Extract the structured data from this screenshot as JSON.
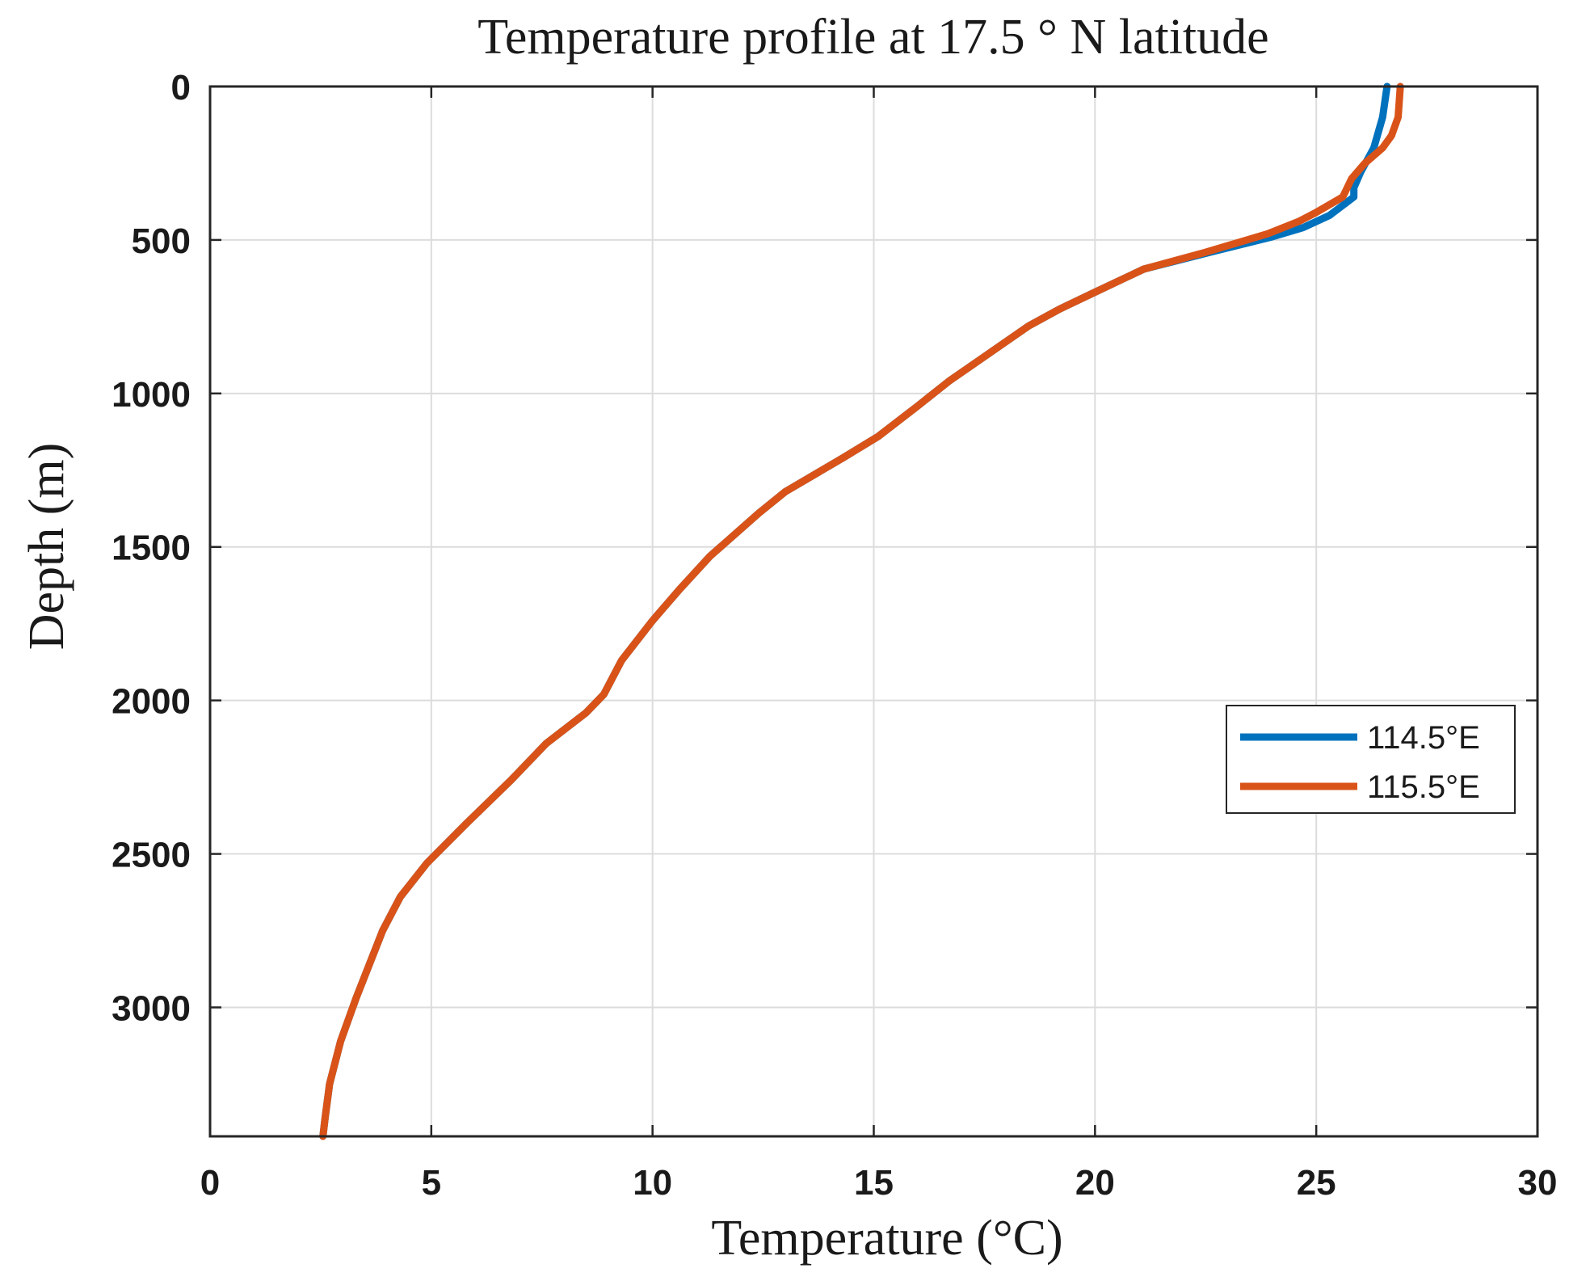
{
  "chart_data": {
    "type": "line",
    "title": "Temperature profile at 17.5 ° N latitude",
    "xlabel": "Temperature (°C)",
    "ylabel": "Depth (m)",
    "xlim": [
      0,
      30
    ],
    "ylim": [
      0,
      3420
    ],
    "y_reversed": true,
    "xticks": [
      0,
      5,
      10,
      15,
      20,
      25,
      30
    ],
    "yticks": [
      0,
      500,
      1000,
      1500,
      2000,
      2500,
      3000
    ],
    "grid": true,
    "legend_position": "right",
    "series": [
      {
        "name": "114.5°E",
        "color": "#0072BD",
        "points": [
          [
            26.6,
            0
          ],
          [
            26.5,
            100
          ],
          [
            26.3,
            200
          ],
          [
            26.0,
            280
          ],
          [
            25.85,
            330
          ],
          [
            25.85,
            360
          ],
          [
            25.3,
            420
          ],
          [
            24.7,
            460
          ],
          [
            24.0,
            490
          ],
          [
            22.6,
            540
          ],
          [
            21.1,
            595
          ],
          [
            20.0,
            670
          ],
          [
            19.2,
            725
          ],
          [
            18.5,
            780
          ],
          [
            17.3,
            900
          ],
          [
            16.7,
            960
          ],
          [
            16.0,
            1040
          ],
          [
            15.1,
            1140
          ],
          [
            14.3,
            1210
          ],
          [
            13.0,
            1320
          ],
          [
            12.4,
            1390
          ],
          [
            11.3,
            1530
          ],
          [
            10.6,
            1640
          ],
          [
            10.0,
            1740
          ],
          [
            9.3,
            1870
          ],
          [
            8.9,
            1980
          ],
          [
            8.5,
            2040
          ],
          [
            7.6,
            2140
          ],
          [
            6.8,
            2260
          ],
          [
            5.8,
            2400
          ],
          [
            4.9,
            2530
          ],
          [
            4.3,
            2640
          ],
          [
            3.9,
            2750
          ],
          [
            3.3,
            2970
          ],
          [
            2.95,
            3110
          ],
          [
            2.7,
            3250
          ],
          [
            2.6,
            3360
          ],
          [
            2.55,
            3420
          ]
        ]
      },
      {
        "name": "115.5°E",
        "color": "#D95319",
        "points": [
          [
            26.9,
            0
          ],
          [
            26.85,
            100
          ],
          [
            26.7,
            160
          ],
          [
            26.5,
            200
          ],
          [
            26.1,
            250
          ],
          [
            25.8,
            300
          ],
          [
            25.6,
            360
          ],
          [
            25.0,
            410
          ],
          [
            24.6,
            440
          ],
          [
            23.9,
            480
          ],
          [
            22.5,
            540
          ],
          [
            21.1,
            595
          ],
          [
            20.0,
            670
          ],
          [
            19.2,
            725
          ],
          [
            18.5,
            780
          ],
          [
            17.3,
            900
          ],
          [
            16.7,
            960
          ],
          [
            16.0,
            1040
          ],
          [
            15.1,
            1140
          ],
          [
            14.3,
            1210
          ],
          [
            13.0,
            1320
          ],
          [
            12.4,
            1390
          ],
          [
            11.3,
            1530
          ],
          [
            10.6,
            1640
          ],
          [
            10.0,
            1740
          ],
          [
            9.3,
            1870
          ],
          [
            8.9,
            1980
          ],
          [
            8.5,
            2040
          ],
          [
            7.6,
            2140
          ],
          [
            6.8,
            2260
          ],
          [
            5.8,
            2400
          ],
          [
            4.9,
            2530
          ],
          [
            4.3,
            2640
          ],
          [
            3.9,
            2750
          ],
          [
            3.3,
            2970
          ],
          [
            2.95,
            3110
          ],
          [
            2.7,
            3250
          ],
          [
            2.6,
            3360
          ],
          [
            2.55,
            3420
          ]
        ]
      }
    ]
  }
}
